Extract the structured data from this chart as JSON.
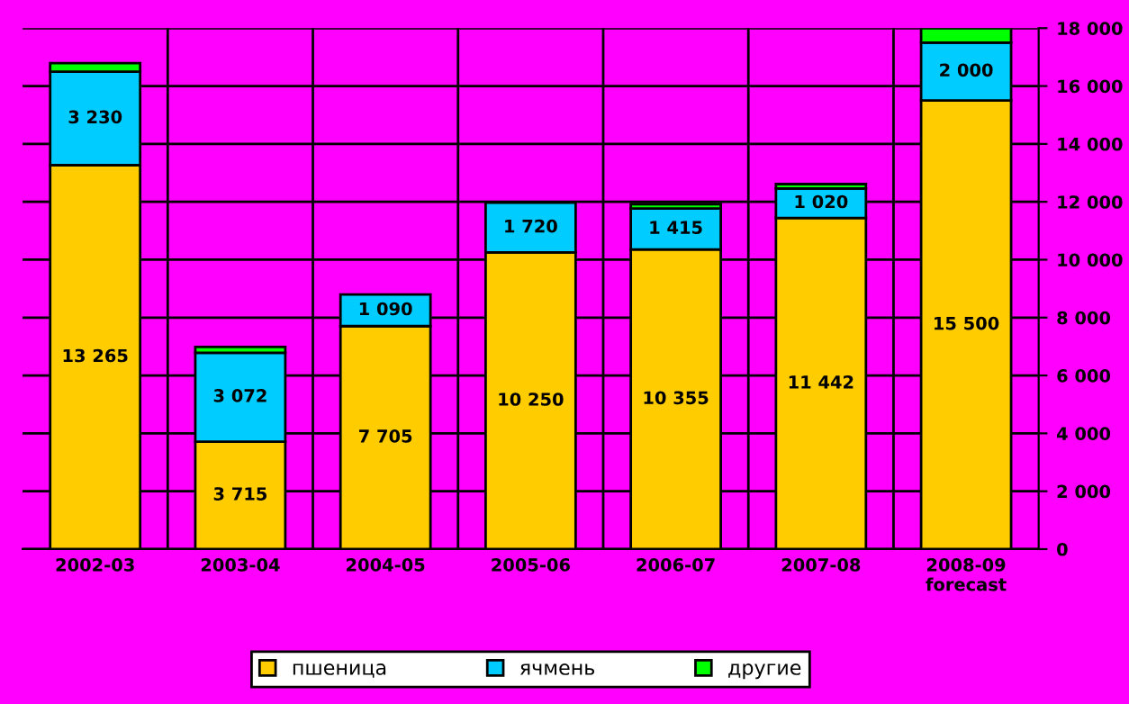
{
  "chart_data": {
    "type": "bar",
    "stacked": true,
    "categories": [
      "2002-03",
      "2003-04",
      "2004-05",
      "2005-06",
      "2006-07",
      "2007-08",
      "2008-09\nforecast"
    ],
    "series": [
      {
        "name": "пшеница",
        "color": "#ffcc00",
        "values": [
          13265,
          3715,
          7705,
          10250,
          10355,
          11442,
          15500
        ],
        "value_labels": [
          "13 265",
          "3 715",
          "7 705",
          "10 250",
          "10 355",
          "11 442",
          "15 500"
        ]
      },
      {
        "name": "ячмень",
        "color": "#00ccff",
        "values": [
          3230,
          3072,
          1090,
          1720,
          1415,
          1020,
          2000
        ],
        "value_labels": [
          "3 230",
          "3 072",
          "1 090",
          "1 720",
          "1 415",
          "1 020",
          "2 000"
        ]
      },
      {
        "name": "другие",
        "color": "#00ff00",
        "values": [
          300,
          200,
          null,
          null,
          150,
          150,
          500
        ]
      }
    ],
    "ylim": [
      0,
      18000
    ],
    "yticks": [
      0,
      {
        "value": 2000,
        "label": "2 000"
      },
      {
        "value": 4000,
        "label": "4 000"
      },
      {
        "value": 6000,
        "label": "6 000"
      },
      {
        "value": 8000,
        "label": "8 000"
      },
      {
        "value": 10000,
        "label": "10 000"
      },
      {
        "value": 12000,
        "label": "12 000"
      },
      {
        "value": 14000,
        "label": "14 000"
      },
      {
        "value": 16000,
        "label": "16 000"
      },
      {
        "value": 18000,
        "label": "18 000"
      }
    ],
    "grid": true,
    "legend": "bottom"
  }
}
